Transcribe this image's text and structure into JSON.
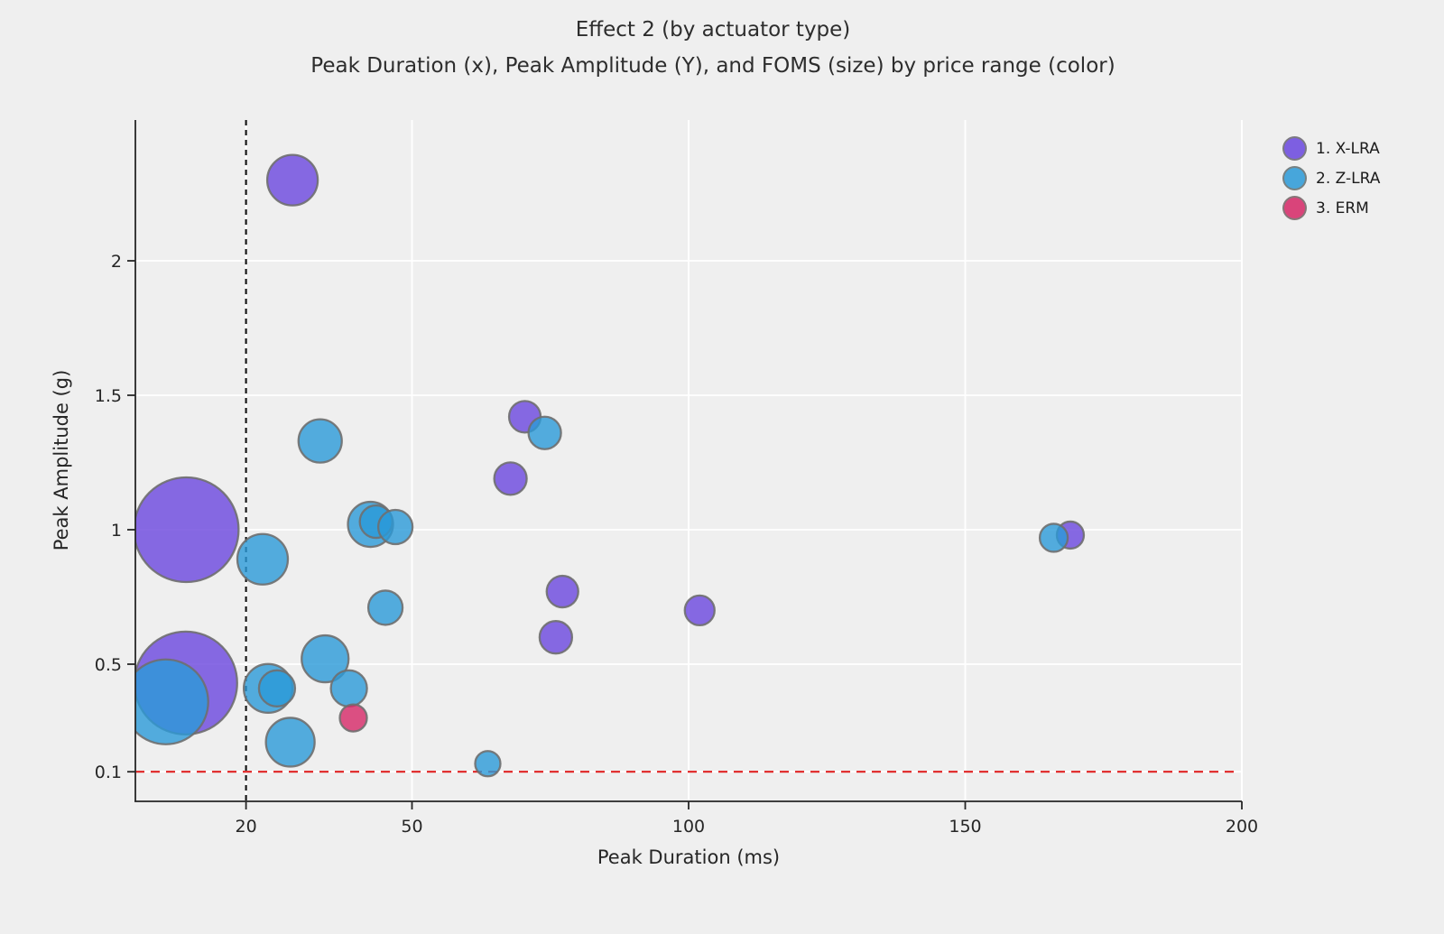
{
  "header": {
    "title": "Effect 2 (by actuator type)",
    "subtitle": "Peak Duration (x), Peak Amplitude (Y), and FOMS (size) by price range (color)"
  },
  "chart_data": {
    "type": "scatter",
    "variant": "bubble",
    "title": "Effect 2 (by actuator type)",
    "subtitle": "Peak Duration (x), Peak Amplitude (Y), and FOMS (size) by price range (color)",
    "xlabel": "Peak Duration (ms)",
    "ylabel": "Peak Amplitude (g)",
    "xlim": [
      0,
      200
    ],
    "ylim": [
      0,
      2.52
    ],
    "x_ticks": [
      20,
      50,
      100,
      150,
      200
    ],
    "y_ticks": [
      0.1,
      0.5,
      1,
      1.5,
      2
    ],
    "grid": true,
    "legend_position": "top-right",
    "size_encoding": "FOMS",
    "color_encoding": "price range",
    "colors": {
      "background": "#efefef",
      "grid": "#ffffff",
      "axis": "#262626",
      "bubble_stroke": "#6f6f6f"
    },
    "reference_lines": [
      {
        "axis": "x",
        "value": 20,
        "style": "dashed",
        "color": "#111111"
      },
      {
        "axis": "y",
        "value": 0.1,
        "style": "dashed",
        "color": "#e02424"
      }
    ],
    "series": [
      {
        "name": "1. X-LRA",
        "color": "#6a46df",
        "points": [
          {
            "x": 28.4,
            "y": 2.3,
            "r": 28
          },
          {
            "x": 9.2,
            "y": 1.0,
            "r": 58
          },
          {
            "x": 9.1,
            "y": 0.43,
            "r": 57
          },
          {
            "x": 70.4,
            "y": 1.42,
            "r": 17.5
          },
          {
            "x": 67.8,
            "y": 1.19,
            "r": 18
          },
          {
            "x": 77.2,
            "y": 0.77,
            "r": 17.5
          },
          {
            "x": 76.0,
            "y": 0.6,
            "r": 18
          },
          {
            "x": 102.0,
            "y": 0.7,
            "r": 16.5
          },
          {
            "x": 169.0,
            "y": 0.98,
            "r": 15
          }
        ]
      },
      {
        "name": "2. Z-LRA",
        "color": "#2a9ad8",
        "points": [
          {
            "x": 5.5,
            "y": 0.36,
            "r": 47
          },
          {
            "x": 23.0,
            "y": 0.89,
            "r": 28
          },
          {
            "x": 33.4,
            "y": 1.33,
            "r": 24
          },
          {
            "x": 42.5,
            "y": 1.02,
            "r": 25
          },
          {
            "x": 43.5,
            "y": 1.03,
            "r": 18
          },
          {
            "x": 47.0,
            "y": 1.01,
            "r": 19
          },
          {
            "x": 45.2,
            "y": 0.71,
            "r": 19
          },
          {
            "x": 34.3,
            "y": 0.52,
            "r": 26
          },
          {
            "x": 24.0,
            "y": 0.41,
            "r": 27
          },
          {
            "x": 25.6,
            "y": 0.41,
            "r": 20
          },
          {
            "x": 38.6,
            "y": 0.41,
            "r": 20
          },
          {
            "x": 28.0,
            "y": 0.21,
            "r": 27
          },
          {
            "x": 63.7,
            "y": 0.13,
            "r": 14
          },
          {
            "x": 74.0,
            "y": 1.36,
            "r": 18
          },
          {
            "x": 166.0,
            "y": 0.97,
            "r": 15.5
          }
        ]
      },
      {
        "name": "3. ERM",
        "color": "#d62766",
        "points": [
          {
            "x": 39.4,
            "y": 0.3,
            "r": 15
          }
        ]
      }
    ]
  }
}
